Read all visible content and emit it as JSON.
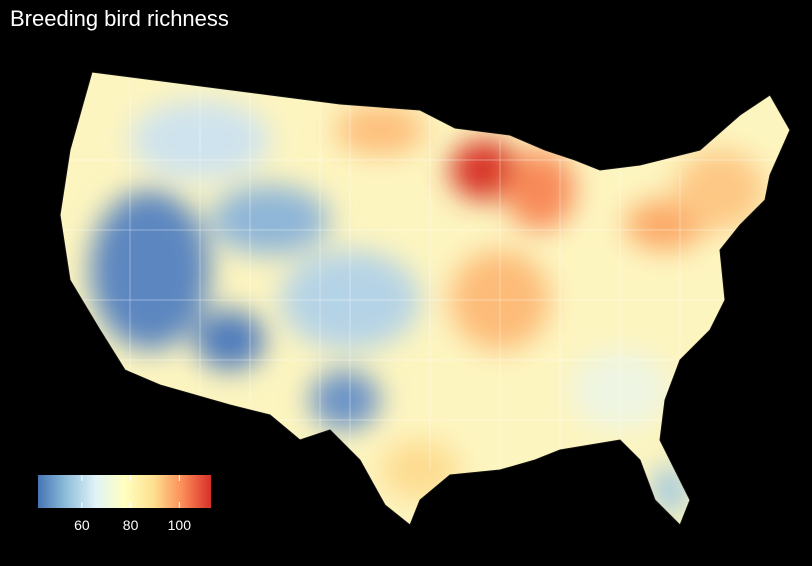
{
  "title": "Breeding bird richness",
  "colorbar": {
    "lim": [
      42,
      113
    ],
    "ticks": [
      60,
      80,
      100
    ],
    "colors": [
      "#4575b4",
      "#91bfdb",
      "#e0f3f8",
      "#ffffbf",
      "#fee090",
      "#fc8d59",
      "#d73027"
    ]
  }
}
